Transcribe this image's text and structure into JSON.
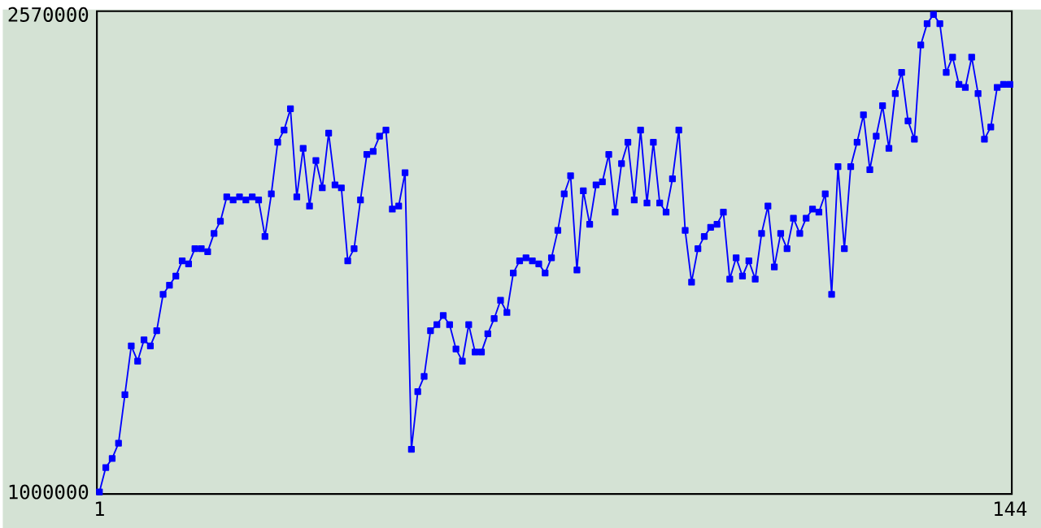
{
  "chart_data": {
    "type": "line",
    "x": [
      1,
      2,
      3,
      4,
      5,
      6,
      7,
      8,
      9,
      10,
      11,
      12,
      13,
      14,
      15,
      16,
      17,
      18,
      19,
      20,
      21,
      22,
      23,
      24,
      25,
      26,
      27,
      28,
      29,
      30,
      31,
      32,
      33,
      34,
      35,
      36,
      37,
      38,
      39,
      40,
      41,
      42,
      43,
      44,
      45,
      46,
      47,
      48,
      49,
      50,
      51,
      52,
      53,
      54,
      55,
      56,
      57,
      58,
      59,
      60,
      61,
      62,
      63,
      64,
      65,
      66,
      67,
      68,
      69,
      70,
      71,
      72,
      73,
      74,
      75,
      76,
      77,
      78,
      79,
      80,
      81,
      82,
      83,
      84,
      85,
      86,
      87,
      88,
      89,
      90,
      91,
      92,
      93,
      94,
      95,
      96,
      97,
      98,
      99,
      100,
      101,
      102,
      103,
      104,
      105,
      106,
      107,
      108,
      109,
      110,
      111,
      112,
      113,
      114,
      115,
      116,
      117,
      118,
      119,
      120,
      121,
      122,
      123,
      124,
      125,
      126,
      127,
      128,
      129,
      130,
      131,
      132,
      133,
      134,
      135,
      136,
      137,
      138,
      139,
      140,
      141,
      142,
      143,
      144
    ],
    "series": [
      {
        "color": "#0000ff",
        "values": [
          1000000,
          1080000,
          1110000,
          1160000,
          1320000,
          1480000,
          1430000,
          1500000,
          1480000,
          1530000,
          1650000,
          1680000,
          1710000,
          1760000,
          1750000,
          1800000,
          1800000,
          1790000,
          1850000,
          1890000,
          1970000,
          1960000,
          1970000,
          1960000,
          1970000,
          1960000,
          1840000,
          1980000,
          2150000,
          2190000,
          2260000,
          1970000,
          2130000,
          1940000,
          2090000,
          2000000,
          2180000,
          2010000,
          2000000,
          1760000,
          1800000,
          1960000,
          2110000,
          2120000,
          2170000,
          2190000,
          1930000,
          1940000,
          2050000,
          1140000,
          1330000,
          1380000,
          1530000,
          1550000,
          1580000,
          1550000,
          1470000,
          1430000,
          1550000,
          1460000,
          1460000,
          1520000,
          1570000,
          1630000,
          1590000,
          1720000,
          1760000,
          1770000,
          1760000,
          1750000,
          1720000,
          1770000,
          1860000,
          1980000,
          2040000,
          1730000,
          1990000,
          1880000,
          2010000,
          2020000,
          2110000,
          1920000,
          2080000,
          2150000,
          1960000,
          2190000,
          1950000,
          2150000,
          1950000,
          1920000,
          2030000,
          2190000,
          1860000,
          1690000,
          1800000,
          1840000,
          1870000,
          1880000,
          1920000,
          1700000,
          1770000,
          1710000,
          1760000,
          1700000,
          1850000,
          1940000,
          1740000,
          1850000,
          1800000,
          1900000,
          1850000,
          1900000,
          1930000,
          1920000,
          1980000,
          1650000,
          2070000,
          1800000,
          2070000,
          2150000,
          2240000,
          2060000,
          2170000,
          2270000,
          2130000,
          2310000,
          2380000,
          2220000,
          2160000,
          2470000,
          2540000,
          2570000,
          2540000,
          2380000,
          2430000,
          2340000,
          2330000,
          2430000,
          2310000,
          2160000,
          2200000,
          2330000,
          2340000,
          2340000
        ]
      }
    ],
    "xlim": [
      0.6,
      144.3
    ],
    "ylim": [
      993000,
      2581000
    ],
    "xticks": [
      1,
      144
    ],
    "yticks": [
      1000000,
      2570000
    ],
    "marker": "square",
    "line_style": "solid",
    "grid": false
  }
}
